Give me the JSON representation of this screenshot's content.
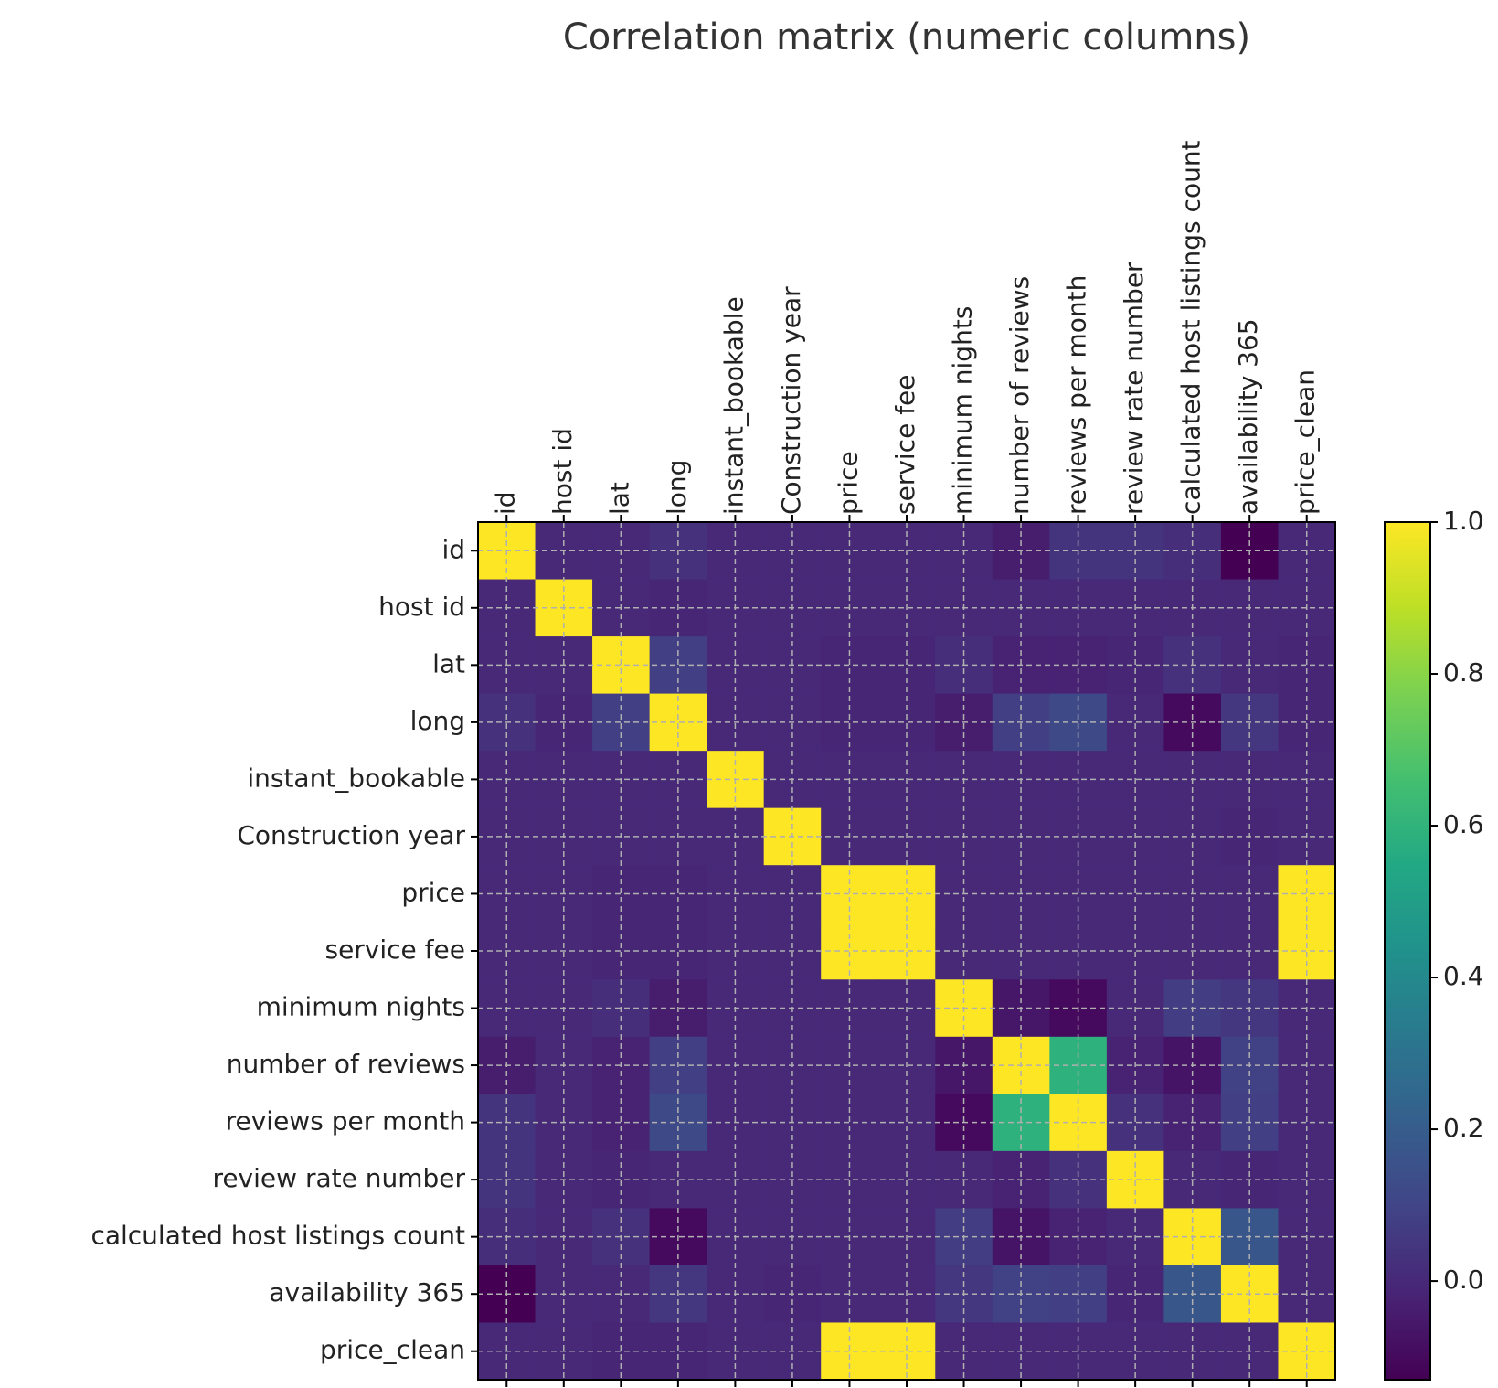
{
  "chart_data": {
    "type": "heatmap",
    "title": "Correlation matrix (numeric columns)",
    "labels": [
      "id",
      "host id",
      "lat",
      "long",
      "instant_bookable",
      "Construction year",
      "price",
      "service fee",
      "minimum nights",
      "number of reviews",
      "reviews per month",
      "review rate number",
      "calculated host listings count",
      "availability 365",
      "price_clean"
    ],
    "values": [
      [
        1.0,
        0.0,
        0.0,
        0.03,
        0.0,
        0.0,
        0.0,
        0.0,
        0.0,
        -0.04,
        0.04,
        0.04,
        0.02,
        -0.13,
        0.0
      ],
      [
        0.0,
        1.0,
        0.0,
        -0.01,
        0.0,
        0.0,
        0.0,
        0.0,
        0.0,
        0.0,
        0.0,
        0.0,
        0.0,
        0.0,
        0.0
      ],
      [
        0.0,
        0.0,
        1.0,
        0.08,
        0.0,
        0.0,
        -0.01,
        -0.01,
        0.02,
        -0.02,
        -0.02,
        -0.01,
        0.03,
        0.0,
        -0.01
      ],
      [
        0.03,
        -0.01,
        0.08,
        1.0,
        0.0,
        0.0,
        -0.01,
        -0.01,
        -0.04,
        0.08,
        0.12,
        0.0,
        -0.1,
        0.05,
        -0.01
      ],
      [
        0.0,
        0.0,
        0.0,
        0.0,
        1.0,
        0.0,
        0.0,
        0.0,
        0.0,
        0.0,
        0.0,
        0.0,
        0.0,
        0.0,
        0.0
      ],
      [
        0.0,
        0.0,
        0.0,
        0.0,
        0.0,
        1.0,
        0.0,
        0.0,
        0.0,
        0.0,
        0.0,
        0.0,
        0.0,
        -0.01,
        0.0
      ],
      [
        0.0,
        0.0,
        -0.01,
        -0.01,
        0.0,
        0.0,
        1.0,
        1.0,
        0.0,
        0.0,
        0.0,
        0.0,
        0.0,
        0.0,
        1.0
      ],
      [
        0.0,
        0.0,
        -0.01,
        -0.01,
        0.0,
        0.0,
        1.0,
        1.0,
        0.0,
        0.0,
        0.0,
        0.0,
        0.0,
        0.0,
        1.0
      ],
      [
        0.0,
        0.0,
        0.02,
        -0.04,
        0.0,
        0.0,
        0.0,
        0.0,
        1.0,
        -0.06,
        -0.1,
        0.0,
        0.07,
        0.05,
        0.0
      ],
      [
        -0.04,
        0.0,
        -0.02,
        0.08,
        0.0,
        0.0,
        0.0,
        0.0,
        -0.06,
        1.0,
        0.59,
        -0.02,
        -0.07,
        0.09,
        0.0
      ],
      [
        0.04,
        0.0,
        -0.02,
        0.12,
        0.0,
        0.0,
        0.0,
        0.0,
        -0.1,
        0.59,
        1.0,
        0.03,
        -0.02,
        0.08,
        0.0
      ],
      [
        0.04,
        0.0,
        -0.01,
        0.0,
        0.0,
        0.0,
        0.0,
        0.0,
        0.0,
        -0.02,
        0.03,
        1.0,
        0.0,
        -0.01,
        0.0
      ],
      [
        0.02,
        0.0,
        0.03,
        -0.1,
        0.0,
        0.0,
        0.0,
        0.0,
        0.07,
        -0.07,
        -0.02,
        0.0,
        1.0,
        0.17,
        0.0
      ],
      [
        -0.13,
        0.0,
        0.0,
        0.05,
        0.0,
        -0.01,
        0.0,
        0.0,
        0.05,
        0.09,
        0.08,
        -0.01,
        0.17,
        1.0,
        0.0
      ],
      [
        0.0,
        0.0,
        -0.01,
        -0.01,
        0.0,
        0.0,
        1.0,
        1.0,
        0.0,
        0.0,
        0.0,
        0.0,
        0.0,
        0.0,
        1.0
      ]
    ],
    "colormap": "viridis",
    "vmin": -0.13,
    "vmax": 1.0,
    "colorbar_ticks": [
      0.0,
      0.2,
      0.4,
      0.6,
      0.8,
      1.0
    ],
    "colorbar_tick_labels": [
      "0.0",
      "0.2",
      "0.4",
      "0.6",
      "0.8",
      "1.0"
    ],
    "grid": true,
    "x_tick_position": "top",
    "x_tick_rotation": 90
  }
}
